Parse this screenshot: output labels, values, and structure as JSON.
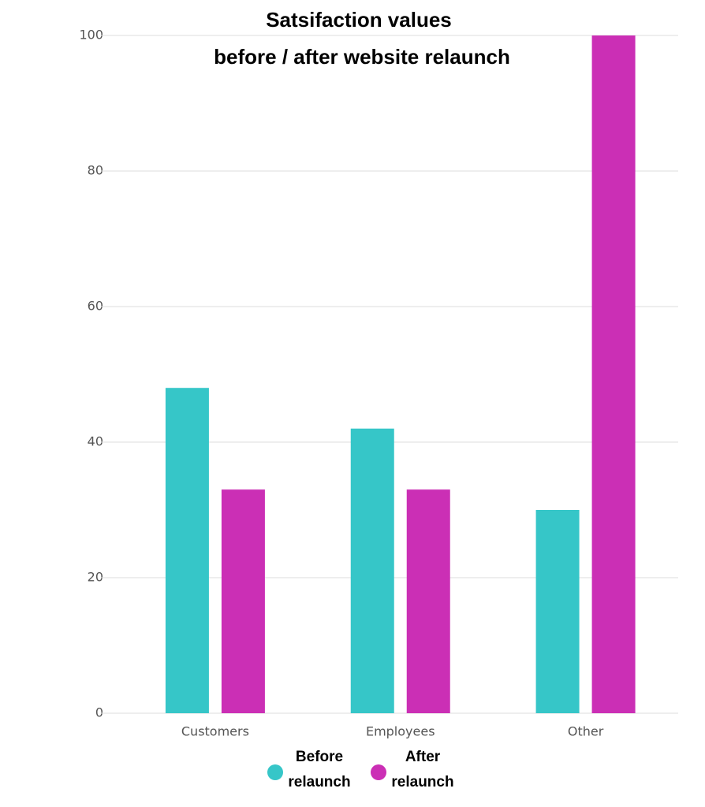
{
  "chart_data": {
    "type": "bar",
    "title": [
      "Satsifaction values",
      "before / after website relaunch"
    ],
    "categories": [
      "Customers",
      "Employees",
      "Other"
    ],
    "series": [
      {
        "name": "Before relaunch",
        "color": "#36c6c8",
        "values": [
          48,
          42,
          30
        ]
      },
      {
        "name": "After relaunch",
        "color": "#cb2fb5",
        "values": [
          33,
          33,
          100
        ]
      }
    ],
    "ylim": [
      0,
      100
    ],
    "yticks": [
      0,
      20,
      40,
      60,
      80,
      100
    ],
    "grid": true
  }
}
